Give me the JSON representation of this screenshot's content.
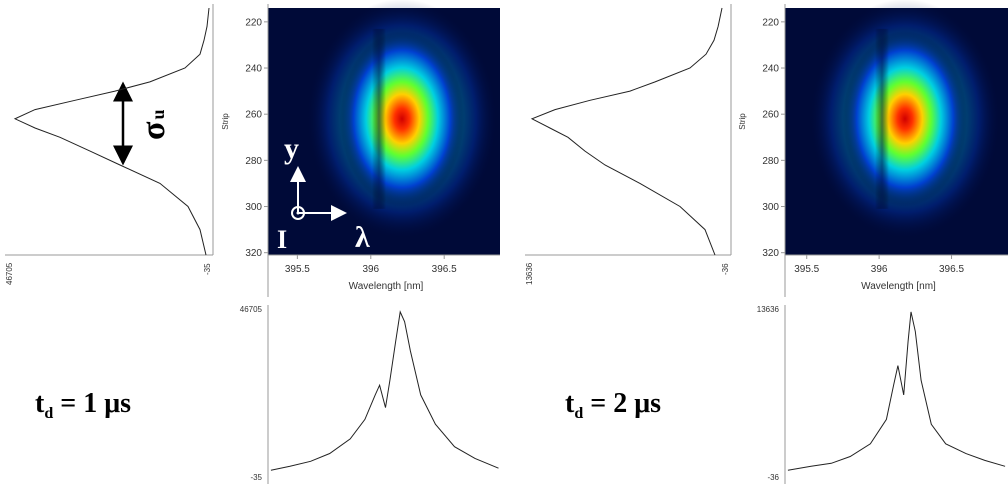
{
  "annotations": {
    "sigma": "σ",
    "sigma_sub": "u",
    "axis_y": "y",
    "axis_i": "I",
    "axis_lambda": "λ"
  },
  "panels": [
    {
      "label": {
        "t": "t",
        "sub": "d",
        "rest": " = 1 μs"
      },
      "image": {
        "y_axis_title": "Strip",
        "x_axis_title": "Wavelength [nm]",
        "ylim": [
          214,
          321
        ],
        "yticks": [
          220,
          240,
          260,
          280,
          300,
          320
        ],
        "xlim": [
          395.3,
          396.88
        ],
        "xticks": [
          395.5,
          396,
          396.5
        ]
      },
      "vertical_profile": {
        "range": [
          -35,
          46705
        ],
        "strips": [
          214,
          222,
          228,
          234,
          240,
          246,
          250,
          254,
          258,
          262,
          266,
          270,
          276,
          282,
          290,
          300,
          310,
          321
        ],
        "values": [
          200,
          670,
          1370,
          2300,
          5810,
          14000,
          22170,
          31520,
          40860,
          45540,
          40860,
          35020,
          28010,
          21000,
          11650,
          5100,
          2300,
          900
        ]
      },
      "horizontal_profile": {
        "range": [
          -35,
          46705
        ],
        "wavelengths": [
          395.32,
          395.45,
          395.59,
          395.72,
          395.86,
          395.96,
          396.03,
          396.06,
          396.1,
          396.13,
          396.17,
          396.2,
          396.23,
          396.27,
          396.34,
          396.44,
          396.57,
          396.71,
          396.87
        ],
        "values": [
          1600,
          2700,
          4070,
          6250,
          10350,
          15820,
          22650,
          25380,
          19100,
          26750,
          37680,
          45880,
          43150,
          34950,
          22650,
          14450,
          8160,
          4880,
          2150
        ]
      }
    },
    {
      "label": {
        "t": "t",
        "sub": "d",
        "rest": " = 2 μs"
      },
      "image": {
        "y_axis_title": "Strip",
        "x_axis_title": "Wavelength [nm]",
        "ylim": [
          214,
          321
        ],
        "yticks": [
          220,
          240,
          260,
          280,
          300,
          320
        ],
        "xlim": [
          395.35,
          396.89
        ],
        "xticks": [
          395.5,
          396,
          396.5
        ]
      },
      "vertical_profile": {
        "range": [
          -36,
          13636
        ],
        "strips": [
          214,
          222,
          228,
          234,
          240,
          246,
          250,
          254,
          258,
          262,
          266,
          270,
          276,
          282,
          290,
          300,
          310,
          321
        ],
        "values": [
          380,
          650,
          930,
          1480,
          2590,
          5000,
          6730,
          9490,
          11910,
          13500,
          12260,
          11010,
          9840,
          8460,
          6040,
          3280,
          1550,
          860
        ]
      },
      "horizontal_profile": {
        "range": [
          -36,
          13636
        ],
        "wavelengths": [
          395.37,
          395.53,
          395.67,
          395.8,
          395.94,
          396.05,
          396.1,
          396.13,
          396.17,
          396.2,
          396.22,
          396.25,
          396.29,
          396.36,
          396.46,
          396.6,
          396.73,
          396.87
        ],
        "values": [
          440,
          760,
          1000,
          1560,
          2600,
          4600,
          7400,
          9000,
          6600,
          11000,
          13400,
          11800,
          7800,
          4200,
          2600,
          1800,
          1240,
          760
        ]
      }
    }
  ]
}
